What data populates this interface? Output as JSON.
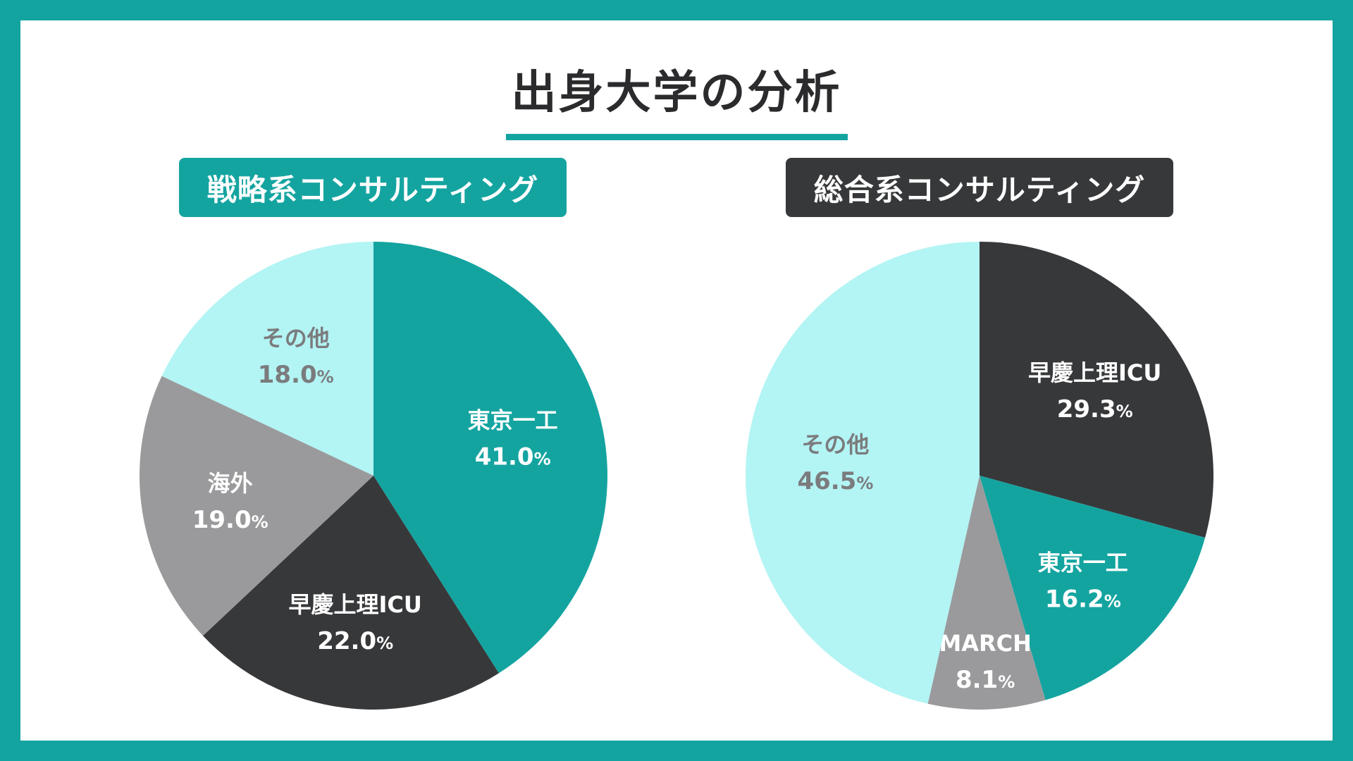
{
  "title": "出身大学の分析",
  "chart_data": [
    {
      "type": "pie",
      "title": "戦略系コンサルティング",
      "title_bg": "#14a4a0",
      "start_angle_deg": 0,
      "direction": "clockwise",
      "slices": [
        {
          "label": "東京一工",
          "value": 41.0,
          "pct_text": "41.0",
          "color": "#14a4a0",
          "text_color": "#ffffff"
        },
        {
          "label": "早慶上理ICU",
          "value": 22.0,
          "pct_text": "22.0",
          "color": "#37383a",
          "text_color": "#ffffff"
        },
        {
          "label": "海外",
          "value": 19.0,
          "pct_text": "19.0",
          "color": "#9a9a9c",
          "text_color": "#ffffff"
        },
        {
          "label": "その他",
          "value": 18.0,
          "pct_text": "18.0",
          "color": "#b3f4f4",
          "text_color": "#7b7b7d"
        }
      ]
    },
    {
      "type": "pie",
      "title": "総合系コンサルティング",
      "title_bg": "#37383a",
      "start_angle_deg": 0,
      "direction": "clockwise",
      "slices": [
        {
          "label": "早慶上理ICU",
          "value": 29.3,
          "pct_text": "29.3",
          "color": "#37383a",
          "text_color": "#ffffff"
        },
        {
          "label": "東京一工",
          "value": 16.2,
          "pct_text": "16.2",
          "color": "#14a4a0",
          "text_color": "#ffffff"
        },
        {
          "label": "MARCH",
          "value": 8.1,
          "pct_text": "8.1",
          "color": "#9a9a9c",
          "text_color": "#ffffff"
        },
        {
          "label": "その他",
          "value": 46.5,
          "pct_text": "46.5",
          "color": "#b3f4f4",
          "text_color": "#7b7b7d"
        }
      ]
    }
  ],
  "percent_sign": "%"
}
